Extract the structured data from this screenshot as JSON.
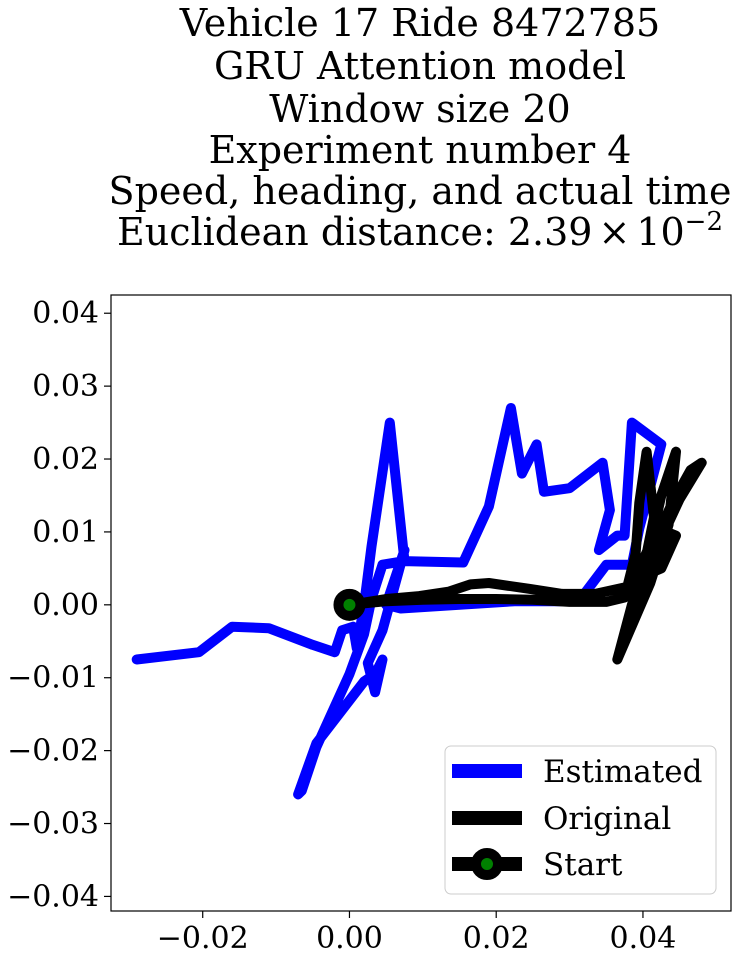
{
  "chart_data": {
    "type": "line",
    "title_lines": [
      "Vehicle 17 Ride 8472785",
      "GRU Attention model",
      "Window size 20",
      "Experiment number 4",
      "Speed, heading, and actual time"
    ],
    "title_distance": {
      "prefix": "Euclidean distance: 2.39",
      "times": "×",
      "base": "10",
      "exponent": "−2"
    },
    "xlabel": "",
    "ylabel": "",
    "xlim": [
      -0.0325,
      0.052
    ],
    "ylim": [
      -0.042,
      0.0425
    ],
    "x_ticks": [
      -0.02,
      0.0,
      0.02,
      0.04
    ],
    "x_tick_labels": [
      "−0.02",
      "0.00",
      "0.02",
      "0.04"
    ],
    "y_ticks": [
      -0.04,
      -0.03,
      -0.02,
      -0.01,
      0.0,
      0.01,
      0.02,
      0.03,
      0.04
    ],
    "y_tick_labels": [
      "−0.04",
      "−0.03",
      "−0.02",
      "−0.01",
      "0.00",
      "0.01",
      "0.02",
      "0.03",
      "0.04"
    ],
    "grid": false,
    "legend_position": "lower-right",
    "series": [
      {
        "name": "Estimated",
        "color": "#0000ff",
        "points": [
          [
            -0.029,
            -0.0075
          ],
          [
            -0.0205,
            -0.0065
          ],
          [
            -0.016,
            -0.003
          ],
          [
            -0.011,
            -0.0032
          ],
          [
            -0.005,
            -0.0055
          ],
          [
            -0.002,
            -0.0065
          ],
          [
            -0.001,
            -0.0035
          ],
          [
            0.0005,
            -0.003
          ],
          [
            0.001,
            -0.006
          ],
          [
            0.002,
            0.0
          ],
          [
            0.003,
            0.008
          ],
          [
            0.0055,
            0.025
          ],
          [
            0.0075,
            0.006
          ],
          [
            0.0155,
            0.0058
          ],
          [
            0.019,
            0.0135
          ],
          [
            0.022,
            0.027
          ],
          [
            0.0235,
            0.018
          ],
          [
            0.0255,
            0.022
          ],
          [
            0.0265,
            0.0155
          ],
          [
            0.03,
            0.016
          ],
          [
            0.0345,
            0.0195
          ],
          [
            0.0355,
            0.013
          ],
          [
            0.034,
            0.0075
          ],
          [
            0.0365,
            0.0095
          ],
          [
            0.0375,
            0.0095
          ],
          [
            0.0385,
            0.025
          ],
          [
            0.0425,
            0.022
          ],
          [
            0.0395,
            0.0105
          ],
          [
            0.0385,
            0.0055
          ],
          [
            0.035,
            0.0055
          ],
          [
            0.032,
            0.0015
          ],
          [
            0.0295,
            0.0005
          ],
          [
            0.0225,
            0.0005
          ],
          [
            0.015,
            0.0
          ],
          [
            0.007,
            -0.0005
          ],
          [
            0.005,
            0.0
          ],
          [
            0.0075,
            0.0075
          ],
          [
            0.0045,
            -0.0035
          ],
          [
            0.0025,
            -0.008
          ],
          [
            0.0035,
            -0.012
          ],
          [
            0.0045,
            -0.0075
          ],
          [
            0.0035,
            -0.0095
          ],
          [
            0.002,
            -0.0105
          ],
          [
            -0.0045,
            -0.019
          ],
          [
            -0.007,
            -0.026
          ],
          [
            -0.0065,
            -0.0255
          ],
          [
            -0.0045,
            -0.0195
          ],
          [
            0.0,
            -0.0095
          ],
          [
            0.002,
            -0.004
          ],
          [
            0.003,
            0.0008
          ],
          [
            0.0045,
            0.0055
          ],
          [
            0.0075,
            0.006
          ]
        ]
      },
      {
        "name": "Original",
        "color": "#000000",
        "points": [
          [
            0.0,
            0.0
          ],
          [
            0.005,
            0.0005
          ],
          [
            0.01,
            0.0007
          ],
          [
            0.015,
            0.0008
          ],
          [
            0.02,
            0.0008
          ],
          [
            0.025,
            0.0007
          ],
          [
            0.03,
            0.0004
          ],
          [
            0.035,
            0.0004
          ],
          [
            0.0375,
            0.001
          ],
          [
            0.039,
            0.007
          ],
          [
            0.0395,
            0.014
          ],
          [
            0.0405,
            0.021
          ],
          [
            0.0415,
            0.012
          ],
          [
            0.0395,
            0.002
          ],
          [
            0.0385,
            -0.002
          ],
          [
            0.0405,
            0.006
          ],
          [
            0.0425,
            0.015
          ],
          [
            0.0445,
            0.021
          ],
          [
            0.0435,
            0.011
          ],
          [
            0.041,
            0.003
          ],
          [
            0.038,
            -0.004
          ],
          [
            0.0365,
            -0.0075
          ],
          [
            0.0385,
            0.0
          ],
          [
            0.0415,
            0.0085
          ],
          [
            0.044,
            0.014
          ],
          [
            0.0465,
            0.0185
          ],
          [
            0.048,
            0.0195
          ],
          [
            0.045,
            0.0145
          ],
          [
            0.042,
            0.008
          ],
          [
            0.0395,
            0.002
          ],
          [
            0.0385,
            0.001
          ],
          [
            0.0395,
            0.005
          ],
          [
            0.042,
            0.0105
          ],
          [
            0.0445,
            0.0095
          ],
          [
            0.0425,
            0.005
          ],
          [
            0.039,
            0.0035
          ],
          [
            0.038,
            0.0025
          ],
          [
            0.0335,
            0.0015
          ],
          [
            0.029,
            0.0015
          ],
          [
            0.0245,
            0.0022
          ],
          [
            0.019,
            0.003
          ],
          [
            0.0165,
            0.0028
          ],
          [
            0.0135,
            0.0018
          ],
          [
            0.0095,
            0.0012
          ],
          [
            0.005,
            0.0008
          ],
          [
            0.002,
            0.0003
          ],
          [
            0.0,
            0.0
          ]
        ]
      }
    ],
    "start": {
      "name": "Start",
      "x": 0.0,
      "y": 0.0,
      "color": "#000000",
      "inner_color": "#008000"
    }
  }
}
